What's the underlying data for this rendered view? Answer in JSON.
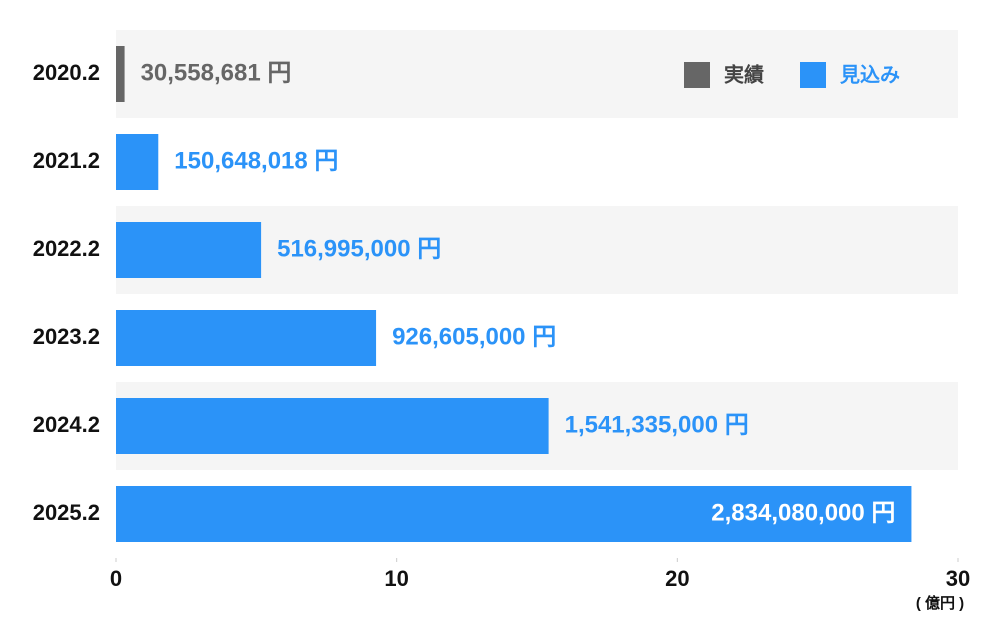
{
  "chart_data": {
    "type": "bar",
    "orientation": "horizontal",
    "categories": [
      "2020.2",
      "2021.2",
      "2022.2",
      "2023.2",
      "2024.2",
      "2025.2"
    ],
    "series": [
      {
        "name": "実績",
        "color": "#666666",
        "values": [
          0.30558681,
          null,
          null,
          null,
          null,
          null
        ],
        "value_labels": [
          "30,558,681 円",
          null,
          null,
          null,
          null,
          null
        ]
      },
      {
        "name": "見込み",
        "color": "#2b93f8",
        "values": [
          null,
          1.50648018,
          5.16995,
          9.26605,
          15.41335,
          28.3408
        ],
        "value_labels": [
          null,
          "150,648,018 円",
          "516,995,000 円",
          "926,605,000 円",
          "1,541,335,000 円",
          "2,834,080,000 円"
        ]
      }
    ],
    "x_label": "( 億円 )",
    "xlim": [
      0,
      30
    ],
    "xticks": [
      0,
      10,
      20,
      30
    ],
    "legend": "top-right"
  }
}
